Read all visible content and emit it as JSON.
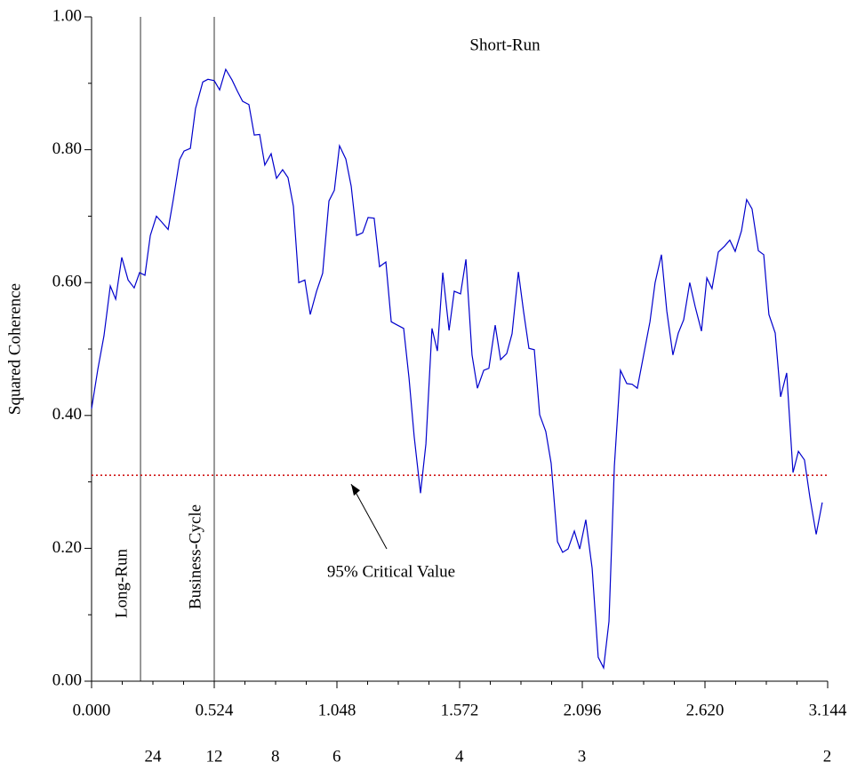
{
  "chart_data": {
    "type": "line",
    "ylabel": "Squared Coherence",
    "x": [
      0,
      0.027,
      0.053,
      0.08,
      0.103,
      0.129,
      0.156,
      0.182,
      0.205,
      0.228,
      0.251,
      0.277,
      0.3,
      0.327,
      0.349,
      0.376,
      0.395,
      0.422,
      0.444,
      0.475,
      0.497,
      0.524,
      0.547,
      0.573,
      0.6,
      0.623,
      0.645,
      0.672,
      0.695,
      0.718,
      0.74,
      0.767,
      0.79,
      0.816,
      0.839,
      0.862,
      0.885,
      0.911,
      0.934,
      0.961,
      0.987,
      1.014,
      1.037,
      1.059,
      1.086,
      1.109,
      1.132,
      1.158,
      1.181,
      1.207,
      1.23,
      1.257,
      1.28,
      1.306,
      1.333,
      1.356,
      1.378,
      1.405,
      1.428,
      1.454,
      1.477,
      1.5,
      1.527,
      1.549,
      1.576,
      1.599,
      1.625,
      1.648,
      1.675,
      1.697,
      1.724,
      1.747,
      1.773,
      1.796,
      1.823,
      1.845,
      1.868,
      1.891,
      1.914,
      1.94,
      1.963,
      1.99,
      2.012,
      2.035,
      2.062,
      2.085,
      2.111,
      2.138,
      2.164,
      2.187,
      2.21,
      2.233,
      2.259,
      2.286,
      2.309,
      2.331,
      2.358,
      2.385,
      2.407,
      2.434,
      2.457,
      2.483,
      2.506,
      2.529,
      2.555,
      2.578,
      2.605,
      2.628,
      2.65,
      2.677,
      2.704,
      2.726,
      2.749,
      2.776,
      2.798,
      2.821,
      2.848,
      2.871,
      2.893,
      2.92,
      2.943,
      2.969,
      2.996,
      3.019,
      3.045,
      3.068,
      3.095,
      3.121
    ],
    "series": [
      {
        "color": "#0000cc",
        "values": [
          0.41,
          0.47,
          0.52,
          0.595,
          0.575,
          0.638,
          0.604,
          0.592,
          0.615,
          0.611,
          0.671,
          0.7,
          0.691,
          0.68,
          0.725,
          0.785,
          0.798,
          0.802,
          0.862,
          0.902,
          0.906,
          0.904,
          0.89,
          0.921,
          0.905,
          0.888,
          0.873,
          0.868,
          0.822,
          0.823,
          0.777,
          0.794,
          0.757,
          0.77,
          0.758,
          0.715,
          0.6,
          0.604,
          0.552,
          0.587,
          0.614,
          0.723,
          0.739,
          0.806,
          0.786,
          0.745,
          0.671,
          0.675,
          0.698,
          0.697,
          0.624,
          0.631,
          0.541,
          0.536,
          0.531,
          0.456,
          0.368,
          0.283,
          0.357,
          0.531,
          0.497,
          0.615,
          0.528,
          0.587,
          0.583,
          0.635,
          0.491,
          0.441,
          0.468,
          0.471,
          0.536,
          0.484,
          0.493,
          0.523,
          0.616,
          0.557,
          0.501,
          0.499,
          0.401,
          0.376,
          0.328,
          0.21,
          0.194,
          0.199,
          0.226,
          0.199,
          0.243,
          0.17,
          0.036,
          0.02,
          0.09,
          0.324,
          0.468,
          0.448,
          0.447,
          0.441,
          0.491,
          0.541,
          0.6,
          0.642,
          0.557,
          0.491,
          0.524,
          0.544,
          0.6,
          0.564,
          0.527,
          0.607,
          0.591,
          0.646,
          0.655,
          0.664,
          0.647,
          0.678,
          0.725,
          0.711,
          0.648,
          0.642,
          0.552,
          0.524,
          0.428,
          0.464,
          0.314,
          0.346,
          0.333,
          0.277,
          0.221,
          0.269
        ]
      }
    ],
    "xlim": [
      0,
      3.144
    ],
    "ylim": [
      0,
      1
    ],
    "xticks": [
      {
        "value": 0,
        "label": "0.000"
      },
      0.524,
      1.048,
      1.572,
      2.096,
      {
        "value": 2.62,
        "label": "2.620"
      },
      3.144
    ],
    "xminorticks": [
      0.131,
      0.262,
      0.393,
      0.655,
      0.786,
      0.917,
      1.179,
      1.31,
      1.441,
      1.703,
      1.834,
      1.965,
      2.227,
      2.358,
      2.489,
      2.751,
      2.882,
      3.013
    ],
    "yticks": [
      {
        "value": 0,
        "label": "0.00"
      },
      {
        "value": 0.2,
        "label": "0.20"
      },
      {
        "value": 0.4,
        "label": "0.40"
      },
      {
        "value": 0.6,
        "label": "0.60"
      },
      {
        "value": 0.8,
        "label": "0.80"
      },
      {
        "value": 1,
        "label": "1.00"
      }
    ],
    "yminorticks": [
      0.1,
      0.3,
      0.5,
      0.7,
      0.9
    ],
    "period_ticks": [
      {
        "value": 0.262,
        "label": "24"
      },
      {
        "value": 0.524,
        "label": "12"
      },
      {
        "value": 0.785,
        "label": "8"
      },
      {
        "value": 1.047,
        "label": "6"
      },
      {
        "value": 1.571,
        "label": "4"
      },
      {
        "value": 2.094,
        "label": "3"
      },
      {
        "value": 3.142,
        "label": "2"
      }
    ],
    "critical_value": {
      "value": 0.31,
      "color": "#cc0000",
      "label": "95% Critical Value"
    },
    "bands": [
      {
        "x": 0.209,
        "label": "Long-Run"
      },
      {
        "x": 0.524,
        "label": "Business-Cycle"
      }
    ],
    "short_run_label": "Short-Run"
  }
}
